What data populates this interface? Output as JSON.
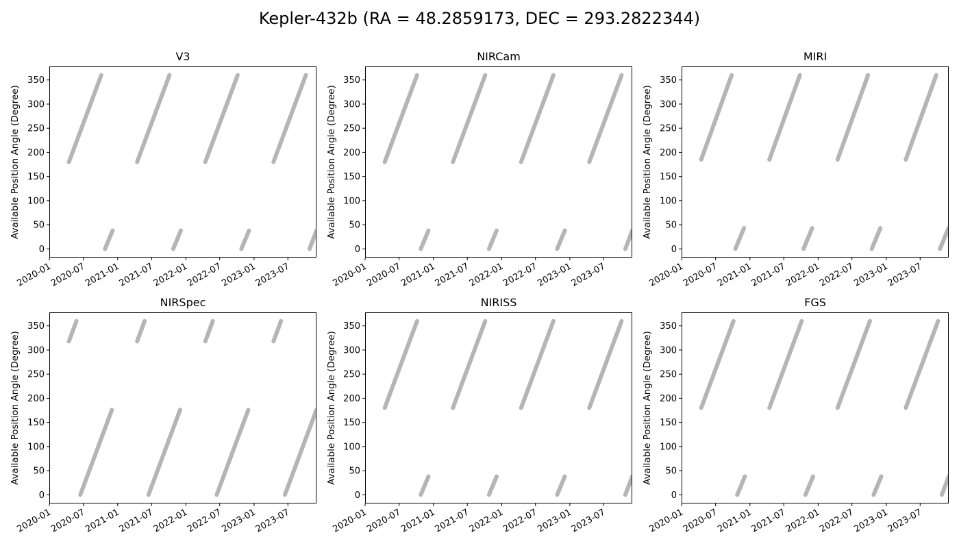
{
  "figure_title": "Kepler-432b (RA = 48.2859173, DEC = 293.2822344)",
  "chart_data": [
    {
      "type": "line",
      "title": "V3",
      "ylabel": "Available Position Angle (Degree)",
      "xlim": [
        "2020-01-01",
        "2023-12-01"
      ],
      "ylim": [
        -18,
        378
      ],
      "x_ticks": [
        "2020-01",
        "2020-07",
        "2021-01",
        "2021-07",
        "2022-01",
        "2022-07",
        "2023-01",
        "2023-07"
      ],
      "y_ticks": [
        0,
        50,
        100,
        150,
        200,
        250,
        300,
        350
      ],
      "color": "#b5b5b5",
      "series": [
        {
          "segments": [
            {
              "start": {
                "x": "2020-04-15",
                "y": 180
              },
              "end": {
                "x": "2020-10-05",
                "y": 360
              }
            },
            {
              "start": {
                "x": "2020-10-25",
                "y": 0
              },
              "end": {
                "x": "2020-12-05",
                "y": 38
              }
            },
            {
              "start": {
                "x": "2021-04-15",
                "y": 180
              },
              "end": {
                "x": "2021-10-05",
                "y": 360
              }
            },
            {
              "start": {
                "x": "2021-10-25",
                "y": 0
              },
              "end": {
                "x": "2021-12-05",
                "y": 38
              }
            },
            {
              "start": {
                "x": "2022-04-15",
                "y": 180
              },
              "end": {
                "x": "2022-10-05",
                "y": 360
              }
            },
            {
              "start": {
                "x": "2022-10-25",
                "y": 0
              },
              "end": {
                "x": "2022-12-05",
                "y": 38
              }
            },
            {
              "start": {
                "x": "2023-04-15",
                "y": 180
              },
              "end": {
                "x": "2023-10-05",
                "y": 360
              }
            },
            {
              "start": {
                "x": "2023-10-25",
                "y": 0
              },
              "end": {
                "x": "2023-12-01",
                "y": 38
              }
            }
          ]
        }
      ]
    },
    {
      "type": "line",
      "title": "NIRCam",
      "ylabel": "Available Position Angle (Degree)",
      "xlim": [
        "2020-01-01",
        "2023-12-01"
      ],
      "ylim": [
        -18,
        378
      ],
      "x_ticks": [
        "2020-01",
        "2020-07",
        "2021-01",
        "2021-07",
        "2022-01",
        "2022-07",
        "2023-01",
        "2023-07"
      ],
      "y_ticks": [
        0,
        50,
        100,
        150,
        200,
        250,
        300,
        350
      ],
      "color": "#b5b5b5",
      "series": [
        {
          "segments": [
            {
              "start": {
                "x": "2020-04-15",
                "y": 180
              },
              "end": {
                "x": "2020-10-05",
                "y": 360
              }
            },
            {
              "start": {
                "x": "2020-10-25",
                "y": 0
              },
              "end": {
                "x": "2020-12-05",
                "y": 38
              }
            },
            {
              "start": {
                "x": "2021-04-15",
                "y": 180
              },
              "end": {
                "x": "2021-10-05",
                "y": 360
              }
            },
            {
              "start": {
                "x": "2021-10-25",
                "y": 0
              },
              "end": {
                "x": "2021-12-05",
                "y": 38
              }
            },
            {
              "start": {
                "x": "2022-04-15",
                "y": 180
              },
              "end": {
                "x": "2022-10-05",
                "y": 360
              }
            },
            {
              "start": {
                "x": "2022-10-25",
                "y": 0
              },
              "end": {
                "x": "2022-12-05",
                "y": 38
              }
            },
            {
              "start": {
                "x": "2023-04-15",
                "y": 180
              },
              "end": {
                "x": "2023-10-05",
                "y": 360
              }
            },
            {
              "start": {
                "x": "2023-10-25",
                "y": 0
              },
              "end": {
                "x": "2023-12-01",
                "y": 38
              }
            }
          ]
        }
      ]
    },
    {
      "type": "line",
      "title": "MIRI",
      "ylabel": "Available Position Angle (Degree)",
      "xlim": [
        "2020-01-01",
        "2023-12-01"
      ],
      "ylim": [
        -18,
        378
      ],
      "x_ticks": [
        "2020-01",
        "2020-07",
        "2021-01",
        "2021-07",
        "2022-01",
        "2022-07",
        "2023-01",
        "2023-07"
      ],
      "y_ticks": [
        0,
        50,
        100,
        150,
        200,
        250,
        300,
        350
      ],
      "color": "#b5b5b5",
      "series": [
        {
          "segments": [
            {
              "start": {
                "x": "2020-04-15",
                "y": 185
              },
              "end": {
                "x": "2020-09-25",
                "y": 360
              }
            },
            {
              "start": {
                "x": "2020-10-15",
                "y": 0
              },
              "end": {
                "x": "2020-11-30",
                "y": 43
              }
            },
            {
              "start": {
                "x": "2021-04-15",
                "y": 185
              },
              "end": {
                "x": "2021-09-25",
                "y": 360
              }
            },
            {
              "start": {
                "x": "2021-10-15",
                "y": 0
              },
              "end": {
                "x": "2021-11-30",
                "y": 43
              }
            },
            {
              "start": {
                "x": "2022-04-15",
                "y": 185
              },
              "end": {
                "x": "2022-09-25",
                "y": 360
              }
            },
            {
              "start": {
                "x": "2022-10-15",
                "y": 0
              },
              "end": {
                "x": "2022-11-30",
                "y": 43
              }
            },
            {
              "start": {
                "x": "2023-04-15",
                "y": 185
              },
              "end": {
                "x": "2023-09-25",
                "y": 360
              }
            },
            {
              "start": {
                "x": "2023-10-15",
                "y": 0
              },
              "end": {
                "x": "2023-11-30",
                "y": 43
              }
            }
          ]
        }
      ]
    },
    {
      "type": "line",
      "title": "NIRSpec",
      "ylabel": "Available Position Angle (Degree)",
      "xlim": [
        "2020-01-01",
        "2023-12-01"
      ],
      "ylim": [
        -18,
        378
      ],
      "x_ticks": [
        "2020-01",
        "2020-07",
        "2021-01",
        "2021-07",
        "2022-01",
        "2022-07",
        "2023-01",
        "2023-07"
      ],
      "y_ticks": [
        0,
        50,
        100,
        150,
        200,
        250,
        300,
        350
      ],
      "color": "#b5b5b5",
      "series": [
        {
          "segments": [
            {
              "start": {
                "x": "2020-04-15",
                "y": 318
              },
              "end": {
                "x": "2020-05-25",
                "y": 360
              }
            },
            {
              "start": {
                "x": "2020-06-15",
                "y": 0
              },
              "end": {
                "x": "2020-12-01",
                "y": 176
              }
            },
            {
              "start": {
                "x": "2021-04-15",
                "y": 318
              },
              "end": {
                "x": "2021-05-25",
                "y": 360
              }
            },
            {
              "start": {
                "x": "2021-06-15",
                "y": 0
              },
              "end": {
                "x": "2021-12-01",
                "y": 176
              }
            },
            {
              "start": {
                "x": "2022-04-15",
                "y": 318
              },
              "end": {
                "x": "2022-05-25",
                "y": 360
              }
            },
            {
              "start": {
                "x": "2022-06-15",
                "y": 0
              },
              "end": {
                "x": "2022-12-01",
                "y": 176
              }
            },
            {
              "start": {
                "x": "2023-04-15",
                "y": 318
              },
              "end": {
                "x": "2023-05-25",
                "y": 360
              }
            },
            {
              "start": {
                "x": "2023-06-15",
                "y": 0
              },
              "end": {
                "x": "2023-12-01",
                "y": 176
              }
            }
          ]
        }
      ]
    },
    {
      "type": "line",
      "title": "NIRISS",
      "ylabel": "Available Position Angle (Degree)",
      "xlim": [
        "2020-01-01",
        "2023-12-01"
      ],
      "ylim": [
        -18,
        378
      ],
      "x_ticks": [
        "2020-01",
        "2020-07",
        "2021-01",
        "2021-07",
        "2022-01",
        "2022-07",
        "2023-01",
        "2023-07"
      ],
      "y_ticks": [
        0,
        50,
        100,
        150,
        200,
        250,
        300,
        350
      ],
      "color": "#b5b5b5",
      "series": [
        {
          "segments": [
            {
              "start": {
                "x": "2020-04-15",
                "y": 180
              },
              "end": {
                "x": "2020-10-05",
                "y": 360
              }
            },
            {
              "start": {
                "x": "2020-10-25",
                "y": 0
              },
              "end": {
                "x": "2020-12-05",
                "y": 38
              }
            },
            {
              "start": {
                "x": "2021-04-15",
                "y": 180
              },
              "end": {
                "x": "2021-10-05",
                "y": 360
              }
            },
            {
              "start": {
                "x": "2021-10-25",
                "y": 0
              },
              "end": {
                "x": "2021-12-05",
                "y": 38
              }
            },
            {
              "start": {
                "x": "2022-04-15",
                "y": 180
              },
              "end": {
                "x": "2022-10-05",
                "y": 360
              }
            },
            {
              "start": {
                "x": "2022-10-25",
                "y": 0
              },
              "end": {
                "x": "2022-12-05",
                "y": 38
              }
            },
            {
              "start": {
                "x": "2023-04-15",
                "y": 180
              },
              "end": {
                "x": "2023-10-05",
                "y": 360
              }
            },
            {
              "start": {
                "x": "2023-10-25",
                "y": 0
              },
              "end": {
                "x": "2023-12-01",
                "y": 38
              }
            }
          ]
        }
      ]
    },
    {
      "type": "line",
      "title": "FGS",
      "ylabel": "Available Position Angle (Degree)",
      "xlim": [
        "2020-01-01",
        "2023-12-01"
      ],
      "ylim": [
        -18,
        378
      ],
      "x_ticks": [
        "2020-01",
        "2020-07",
        "2021-01",
        "2021-07",
        "2022-01",
        "2022-07",
        "2023-01",
        "2023-07"
      ],
      "y_ticks": [
        0,
        50,
        100,
        150,
        200,
        250,
        300,
        350
      ],
      "color": "#b5b5b5",
      "series": [
        {
          "segments": [
            {
              "start": {
                "x": "2020-04-15",
                "y": 180
              },
              "end": {
                "x": "2020-10-05",
                "y": 360
              }
            },
            {
              "start": {
                "x": "2020-10-25",
                "y": 0
              },
              "end": {
                "x": "2020-12-05",
                "y": 38
              }
            },
            {
              "start": {
                "x": "2021-04-15",
                "y": 180
              },
              "end": {
                "x": "2021-10-05",
                "y": 360
              }
            },
            {
              "start": {
                "x": "2021-10-25",
                "y": 0
              },
              "end": {
                "x": "2021-12-05",
                "y": 38
              }
            },
            {
              "start": {
                "x": "2022-04-15",
                "y": 180
              },
              "end": {
                "x": "2022-10-05",
                "y": 360
              }
            },
            {
              "start": {
                "x": "2022-10-25",
                "y": 0
              },
              "end": {
                "x": "2022-12-05",
                "y": 38
              }
            },
            {
              "start": {
                "x": "2023-04-15",
                "y": 180
              },
              "end": {
                "x": "2023-10-05",
                "y": 360
              }
            },
            {
              "start": {
                "x": "2023-10-25",
                "y": 0
              },
              "end": {
                "x": "2023-12-01",
                "y": 38
              }
            }
          ]
        }
      ]
    }
  ]
}
